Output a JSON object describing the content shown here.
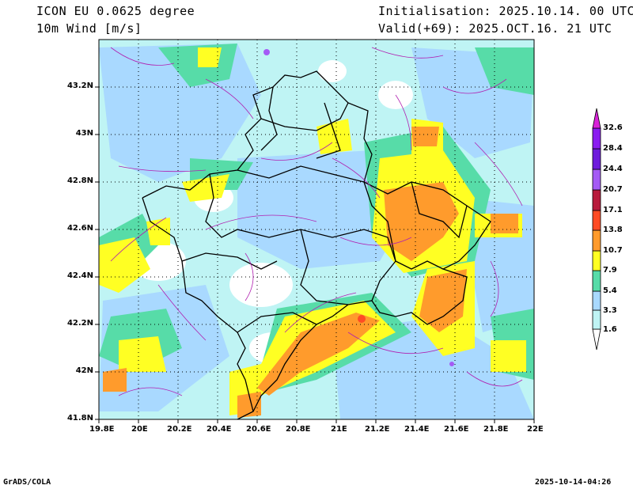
{
  "header": {
    "model": "ICON EU 0.0625 degree",
    "field": "10m Wind [m/s]",
    "init": "Initialisation: 2025.10.14. 00 UTC",
    "valid": "Valid(+69): 2025.OCT.16. 21 UTC"
  },
  "axes": {
    "lat_labels": [
      "43.2N",
      "43N",
      "42.8N",
      "42.6N",
      "42.4N",
      "42.2N",
      "42N",
      "41.8N"
    ],
    "lon_labels": [
      "19.8E",
      "20E",
      "20.2E",
      "20.4E",
      "20.6E",
      "20.8E",
      "21E",
      "21.2E",
      "21.4E",
      "21.6E",
      "21.8E",
      "22E"
    ],
    "lon_range": [
      19.8,
      22.0
    ],
    "lat_range": [
      41.8,
      43.4
    ]
  },
  "colorbar": {
    "levels": [
      "1.6",
      "3.3",
      "5.4",
      "7.9",
      "10.7",
      "13.8",
      "17.1",
      "20.7",
      "24.4",
      "28.4",
      "32.6"
    ],
    "colors": [
      "#bff4f4",
      "#a9d9ff",
      "#57dca8",
      "#ffff23",
      "#ff9b2c",
      "#ff4b24",
      "#b81b3c",
      "#a45bf5",
      "#6e1bdc",
      "#d822d8"
    ]
  },
  "footer": {
    "left": "GrADS/COLA",
    "right": "2025-10-14-04:26"
  }
}
